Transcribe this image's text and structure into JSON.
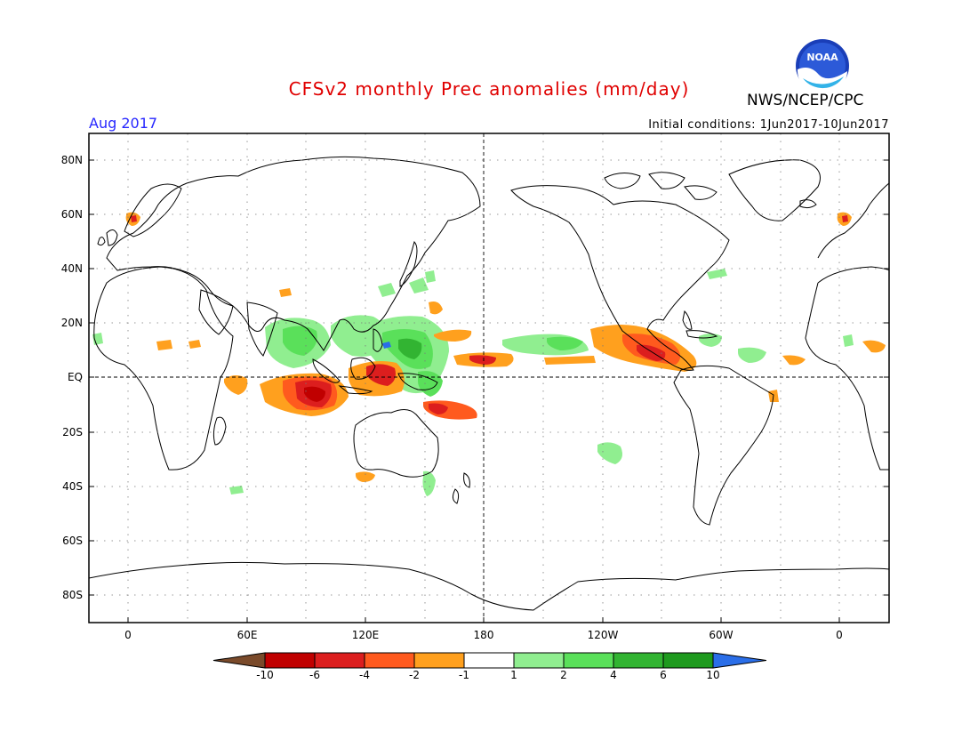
{
  "header": {
    "title": "CFSv2 monthly Prec anomalies (mm/day)",
    "organization": "NWS/NCEP/CPC",
    "logo_text": "NOAA",
    "valid_month": "Aug 2017",
    "initial_conditions": "Initial conditions: 1Jun2017-10Jun2017"
  },
  "map": {
    "lat_ticks": [
      "80N",
      "60N",
      "40N",
      "20N",
      "EQ",
      "20S",
      "40S",
      "60S",
      "80S"
    ],
    "lon_ticks": [
      "0",
      "60E",
      "120E",
      "180",
      "120W",
      "60W",
      "0"
    ],
    "equator_line": true,
    "dateline_line": true,
    "grid": "dotted"
  },
  "colorbar": {
    "labels": [
      "-10",
      "-6",
      "-4",
      "-2",
      "-1",
      "1",
      "2",
      "4",
      "6",
      "10"
    ],
    "colors": [
      "#7a4a2a",
      "#c00000",
      "#dc1e1e",
      "#ff5a1e",
      "#ffa01e",
      "#ffffff",
      "#90ee90",
      "#5ae05a",
      "#32b432",
      "#1e9a1e",
      "#2a6ee8"
    ]
  },
  "anomaly_colors": {
    "dry_light": "#ffa01e",
    "dry_mid": "#ff5a1e",
    "dry_strong": "#dc1e1e",
    "dry_extreme": "#c00000",
    "wet_light": "#90ee90",
    "wet_mid": "#5ae05a",
    "wet_strong": "#32b432",
    "wet_extreme": "#2a6ee8"
  }
}
